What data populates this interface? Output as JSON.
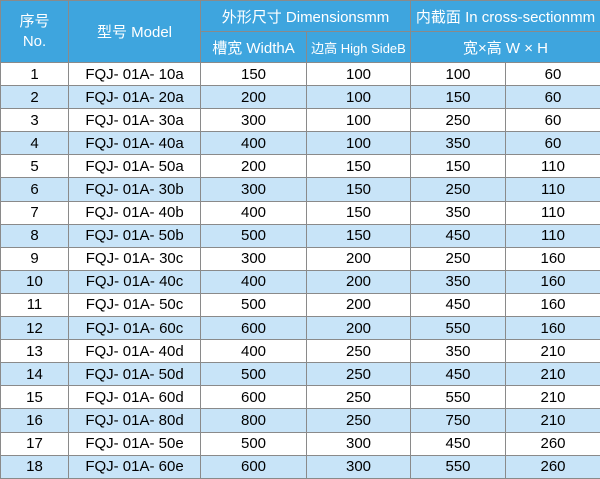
{
  "table": {
    "header": {
      "index": [
        "序号",
        "No."
      ],
      "model": "型号 Model",
      "dimensions": "外形尺寸 Dimensionsmm",
      "width": "槽宽 WidthA",
      "height": "边高 High SideB",
      "cross_section": "内截面 In cross-sectionmm",
      "wh": "宽×高 W × H"
    },
    "rows": [
      [
        1,
        "FQJ- 01A- 10a",
        150,
        100,
        100,
        60
      ],
      [
        2,
        "FQJ- 01A- 20a",
        200,
        100,
        150,
        60
      ],
      [
        3,
        "FQJ- 01A- 30a",
        300,
        100,
        250,
        60
      ],
      [
        4,
        "FQJ- 01A- 40a",
        400,
        100,
        350,
        60
      ],
      [
        5,
        "FQJ- 01A- 50a",
        200,
        150,
        150,
        110
      ],
      [
        6,
        "FQJ- 01A- 30b",
        300,
        150,
        250,
        110
      ],
      [
        7,
        "FQJ- 01A- 40b",
        400,
        150,
        350,
        110
      ],
      [
        8,
        "FQJ- 01A- 50b",
        500,
        150,
        450,
        110
      ],
      [
        9,
        "FQJ- 01A- 30c",
        300,
        200,
        250,
        160
      ],
      [
        10,
        "FQJ- 01A- 40c",
        400,
        200,
        350,
        160
      ],
      [
        11,
        "FQJ- 01A- 50c",
        500,
        200,
        450,
        160
      ],
      [
        12,
        "FQJ- 01A- 60c",
        600,
        200,
        550,
        160
      ],
      [
        13,
        "FQJ- 01A- 40d",
        400,
        250,
        350,
        210
      ],
      [
        14,
        "FQJ- 01A- 50d",
        500,
        250,
        450,
        210
      ],
      [
        15,
        "FQJ- 01A- 60d",
        600,
        250,
        550,
        210
      ],
      [
        16,
        "FQJ- 01A- 80d",
        800,
        250,
        750,
        210
      ],
      [
        17,
        "FQJ- 01A- 50e",
        500,
        300,
        450,
        260
      ],
      [
        18,
        "FQJ- 01A- 60e",
        600,
        300,
        550,
        260
      ]
    ]
  }
}
